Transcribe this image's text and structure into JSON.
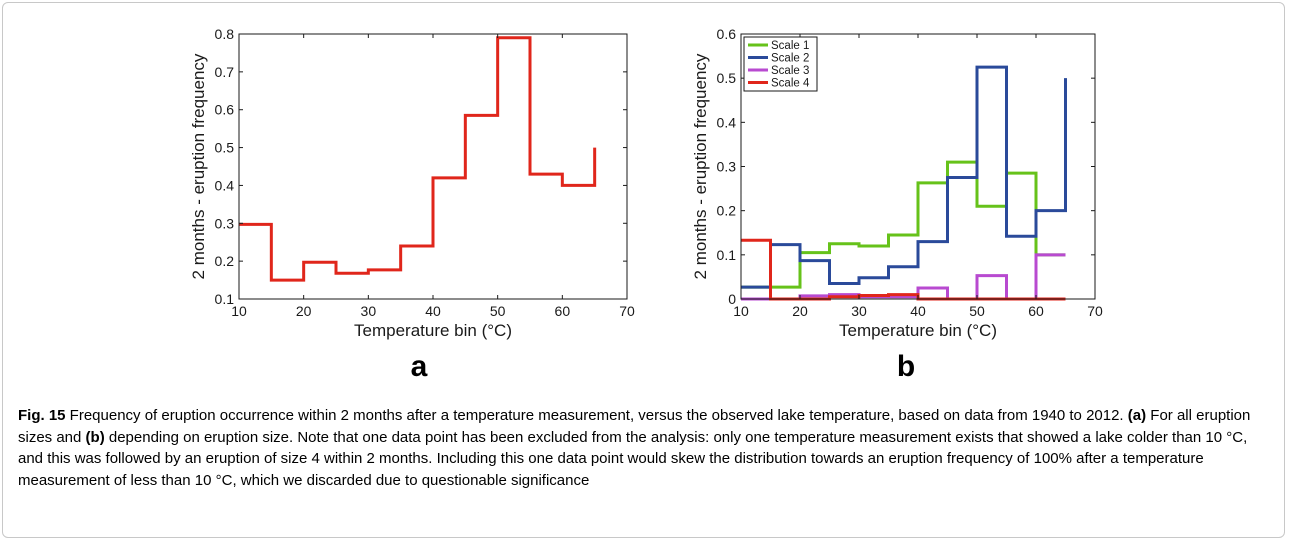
{
  "chart_data": [
    {
      "type": "line",
      "step": true,
      "panel_label": "a",
      "xlabel": "Temperature bin (°C)",
      "ylabel": "2 months - eruption frequency",
      "xlim": [
        10,
        70
      ],
      "ylim": [
        0.1,
        0.8
      ],
      "xticks": [
        10,
        20,
        30,
        40,
        50,
        60,
        70
      ],
      "yticks": [
        0.1,
        0.2,
        0.3,
        0.4,
        0.5,
        0.6,
        0.7,
        0.8
      ],
      "grid": false,
      "series": [
        {
          "color": "#e0261b",
          "x": [
            10,
            15,
            20,
            25,
            30,
            35,
            40,
            45,
            50,
            55,
            60,
            65
          ],
          "values": [
            0.297,
            0.15,
            0.197,
            0.168,
            0.177,
            0.24,
            0.42,
            0.585,
            0.79,
            0.43,
            0.4,
            0.5
          ]
        }
      ]
    },
    {
      "type": "line",
      "step": true,
      "panel_label": "b",
      "xlabel": "Temperature bin (°C)",
      "ylabel": "2 months - eruption frequency",
      "xlim": [
        10,
        70
      ],
      "ylim": [
        0,
        0.6
      ],
      "xticks": [
        10,
        20,
        30,
        40,
        50,
        60,
        70
      ],
      "yticks": [
        0,
        0.1,
        0.2,
        0.3,
        0.4,
        0.5,
        0.6
      ],
      "grid": false,
      "legend_position": "top-left",
      "series": [
        {
          "name": "Scale 1",
          "color": "#66c21a",
          "x": [
            10,
            15,
            20,
            25,
            30,
            35,
            40,
            45,
            50,
            55,
            60,
            65
          ],
          "values": [
            0.027,
            0.027,
            0.105,
            0.125,
            0.12,
            0.145,
            0.263,
            0.31,
            0.21,
            0.285,
            0.1,
            0.1
          ]
        },
        {
          "name": "Scale 2",
          "color": "#2a4a9a",
          "x": [
            10,
            15,
            20,
            25,
            30,
            35,
            40,
            45,
            50,
            55,
            60,
            65
          ],
          "values": [
            0.027,
            0.123,
            0.087,
            0.035,
            0.048,
            0.073,
            0.13,
            0.275,
            0.525,
            0.142,
            0.2,
            0.5
          ]
        },
        {
          "name": "Scale 3",
          "color": "#b84ad0",
          "x": [
            10,
            15,
            20,
            25,
            30,
            35,
            40,
            45,
            50,
            55,
            60,
            65
          ],
          "values": [
            0,
            0,
            0.007,
            0.01,
            0.005,
            0.005,
            0.025,
            0,
            0.053,
            0,
            0.1,
            0.1
          ]
        },
        {
          "name": "Scale 4",
          "color": "#e0261b",
          "x": [
            10,
            15,
            20,
            25,
            30,
            35,
            40,
            45,
            50,
            55,
            60,
            65
          ],
          "values": [
            0.133,
            0,
            0,
            0.005,
            0.008,
            0.01,
            0,
            0,
            0,
            0,
            0,
            0
          ]
        }
      ]
    }
  ],
  "caption": {
    "fig_label": "Fig. 15",
    "text1": " Frequency of eruption occurrence within 2 months after a temperature measurement, versus the observed lake temperature, based on data from 1940 to 2012. ",
    "part_a": "(a)",
    "text2": " For all eruption sizes and ",
    "part_b": "(b)",
    "text3": " depending on eruption size. Note that one data point has been excluded from the analysis: only one temperature measurement exists that showed a lake colder than 10 °C, and this was followed by an eruption of size 4 within 2 months. Including this one data point would skew the distribution towards an eruption frequency of 100% after a temperature measurement of less than 10 °C, which we discarded due to questionable significance"
  }
}
